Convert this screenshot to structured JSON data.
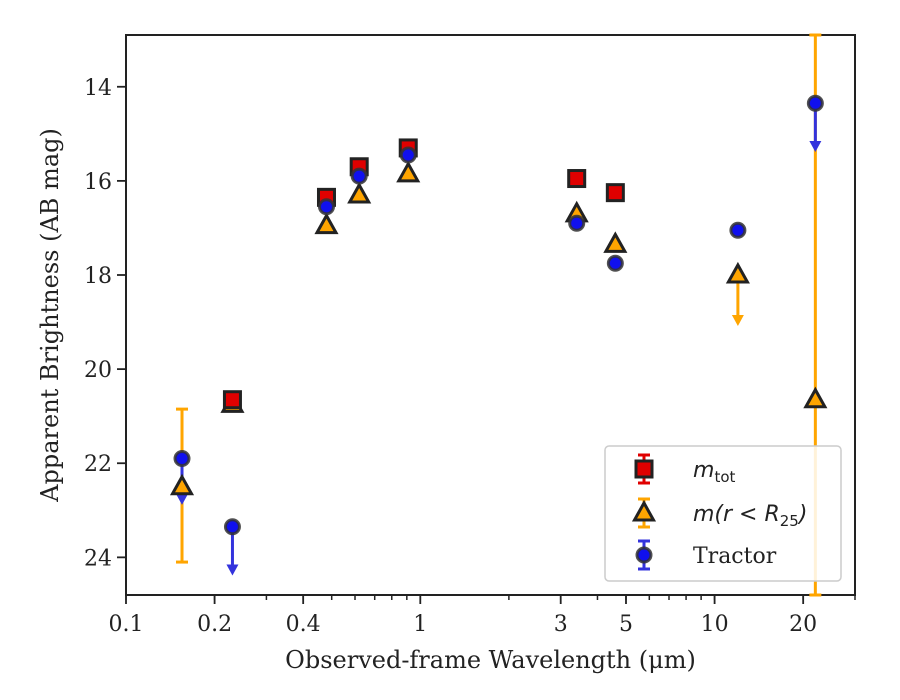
{
  "chart_data": {
    "type": "scatter",
    "title": "",
    "xlabel": "Observed-frame Wavelength (μm)",
    "ylabel": "Apparent Brightness (AB mag)",
    "xscale": "log",
    "xlim": [
      0.1,
      30
    ],
    "ylim": [
      24.8,
      12.9
    ],
    "y_inverted": true,
    "x_ticks": [
      {
        "value": 0.1,
        "label": "0.1"
      },
      {
        "value": 0.2,
        "label": "0.2"
      },
      {
        "value": 0.4,
        "label": "0.4"
      },
      {
        "value": 1,
        "label": "1"
      },
      {
        "value": 3,
        "label": "3"
      },
      {
        "value": 5,
        "label": "5"
      },
      {
        "value": 10,
        "label": "10"
      },
      {
        "value": 20,
        "label": "20"
      }
    ],
    "y_ticks": [
      {
        "value": 14,
        "label": "14"
      },
      {
        "value": 16,
        "label": "16"
      },
      {
        "value": 18,
        "label": "18"
      },
      {
        "value": 20,
        "label": "20"
      },
      {
        "value": 22,
        "label": "22"
      },
      {
        "value": 24,
        "label": "24"
      }
    ],
    "grid": false,
    "legend_position": "bottom-right",
    "series": [
      {
        "name": "m_tot",
        "legend_label": {
          "base": "m",
          "sub": "tot"
        },
        "marker": "square",
        "color": "#e00000",
        "edge": "#222222",
        "errcolor": "#e00000",
        "points": [
          {
            "x": 0.23,
            "y": 20.65
          },
          {
            "x": 0.48,
            "y": 16.35
          },
          {
            "x": 0.62,
            "y": 15.7
          },
          {
            "x": 0.91,
            "y": 15.3
          },
          {
            "x": 3.4,
            "y": 15.95
          },
          {
            "x": 4.6,
            "y": 16.25
          }
        ]
      },
      {
        "name": "m(r < R25)",
        "legend_label": {
          "base": "m(r < R",
          "sub": "25",
          "tail": ")"
        },
        "marker": "triangle",
        "color": "#ffa500",
        "edge": "#222222",
        "errcolor": "#ffa500",
        "points": [
          {
            "x": 0.155,
            "y": 22.5,
            "yerr_low": 20.85,
            "yerr_high": 24.1
          },
          {
            "x": 0.23,
            "y": 20.75
          },
          {
            "x": 0.48,
            "y": 16.95
          },
          {
            "x": 0.62,
            "y": 16.3
          },
          {
            "x": 0.91,
            "y": 15.85
          },
          {
            "x": 3.4,
            "y": 16.7
          },
          {
            "x": 4.6,
            "y": 17.35
          },
          {
            "x": 12,
            "y": 18.0,
            "upper_limit": 19.0
          },
          {
            "x": 22,
            "y": 20.65,
            "yerr_low": 12.9,
            "yerr_high": 24.8
          }
        ]
      },
      {
        "name": "Tractor",
        "legend_label": {
          "base": "Tractor"
        },
        "marker": "circle",
        "color": "#1010ee",
        "edge": "#333333",
        "errcolor": "#3333dd",
        "points": [
          {
            "x": 0.155,
            "y": 21.9,
            "upper_limit": 22.8
          },
          {
            "x": 0.23,
            "y": 23.35,
            "upper_limit": 24.3
          },
          {
            "x": 0.48,
            "y": 16.55
          },
          {
            "x": 0.62,
            "y": 15.9
          },
          {
            "x": 0.91,
            "y": 15.45
          },
          {
            "x": 3.4,
            "y": 16.9
          },
          {
            "x": 4.6,
            "y": 17.75
          },
          {
            "x": 12,
            "y": 17.05
          },
          {
            "x": 22,
            "y": 14.35,
            "upper_limit": 15.3
          }
        ]
      }
    ]
  }
}
